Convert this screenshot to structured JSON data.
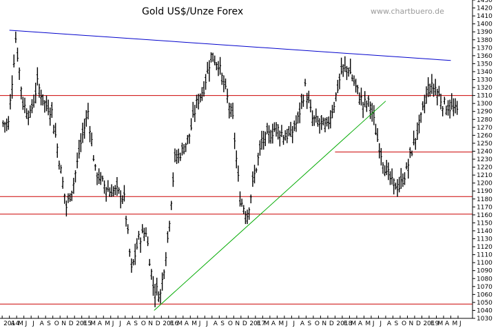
{
  "chart_data": {
    "type": "bar",
    "subtype": "ohlc",
    "title": "Gold US$/Unze Forex",
    "watermark": "www.chartbuero.de",
    "ylim": [
      1030,
      1430
    ],
    "ytick_step": 10,
    "y_axis_side": "right",
    "grid": false,
    "x_labels": [
      "2014",
      "A",
      "M",
      "J",
      "J",
      "A",
      "S",
      "O",
      "N",
      "D",
      "2015",
      "F",
      "M",
      "A",
      "M",
      "J",
      "J",
      "A",
      "S",
      "O",
      "N",
      "D",
      "2016",
      "F",
      "M",
      "A",
      "M",
      "J",
      "J",
      "A",
      "S",
      "O",
      "N",
      "D",
      "2017",
      "F",
      "M",
      "A",
      "M",
      "J",
      "J",
      "A",
      "S",
      "O",
      "N",
      "D",
      "2018",
      "F",
      "M",
      "A",
      "M",
      "J",
      "J",
      "A",
      "S",
      "O",
      "N",
      "D",
      "2019",
      "F",
      "M",
      "A",
      "M",
      "J"
    ],
    "x_months_start": "2014-02",
    "x_month_count": 65,
    "x_lead_months": 0.3,
    "series": [
      {
        "kind": "price",
        "color": "#000000",
        "monthly_close": [
          1275,
          1382,
          1300,
          1285,
          1325,
          1300,
          1290,
          1230,
          1170,
          1200,
          1250,
          1290,
          1215,
          1200,
          1190,
          1190,
          1180,
          1090,
          1130,
          1140,
          1070,
          1060,
          1130,
          1230,
          1240,
          1260,
          1300,
          1320,
          1360,
          1350,
          1315,
          1280,
          1180,
          1160,
          1210,
          1250,
          1260,
          1270,
          1260,
          1260,
          1280,
          1320,
          1280,
          1275,
          1270,
          1300,
          1340,
          1345,
          1320,
          1300,
          1300,
          1255,
          1220,
          1200,
          1195,
          1215,
          1250,
          1280,
          1320,
          1320,
          1300,
          1295,
          1290
        ]
      }
    ],
    "lines": [
      {
        "name": "resistance",
        "color": "#0000cc",
        "from": [
          "2014-03",
          1392
        ],
        "to": [
          "2019-04",
          1354
        ]
      },
      {
        "name": "support-trend",
        "color": "#00aa00",
        "from": [
          "2015-11",
          1040
        ],
        "to": [
          "2018-07",
          1303
        ]
      },
      {
        "name": "level-1310",
        "color": "#cc0000",
        "y": 1310
      },
      {
        "name": "level-1239",
        "color": "#cc0000",
        "y": 1239,
        "from_x": "2017-12"
      },
      {
        "name": "level-1183",
        "color": "#cc0000",
        "y": 1183
      },
      {
        "name": "level-1161",
        "color": "#cc0000",
        "y": 1161
      },
      {
        "name": "level-1048",
        "color": "#cc0000",
        "y": 1048
      }
    ]
  }
}
